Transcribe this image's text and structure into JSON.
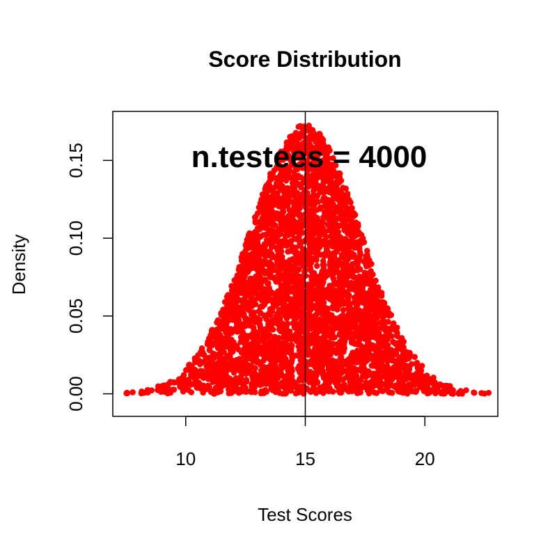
{
  "chart_data": {
    "type": "scatter",
    "title": "Score Distribution",
    "xlabel": "Test Scores",
    "ylabel": "Density",
    "annotation": "n.testees = 4000",
    "xlim": [
      6.95,
      23.05
    ],
    "ylim": [
      -0.0145,
      0.1815
    ],
    "x_ticks": [
      10,
      15,
      20
    ],
    "x_tick_labels": [
      "10",
      "15",
      "20"
    ],
    "y_ticks": [
      0.0,
      0.05,
      0.1,
      0.15
    ],
    "y_tick_labels": [
      "0.00",
      "0.05",
      "0.10",
      "0.15"
    ],
    "vline_x": 15,
    "point_color": "#ff0000",
    "grid": false,
    "n_points": 4000,
    "distribution": {
      "mean": 15,
      "sd": 2.3,
      "min": 7.5,
      "max": 22.7
    }
  }
}
